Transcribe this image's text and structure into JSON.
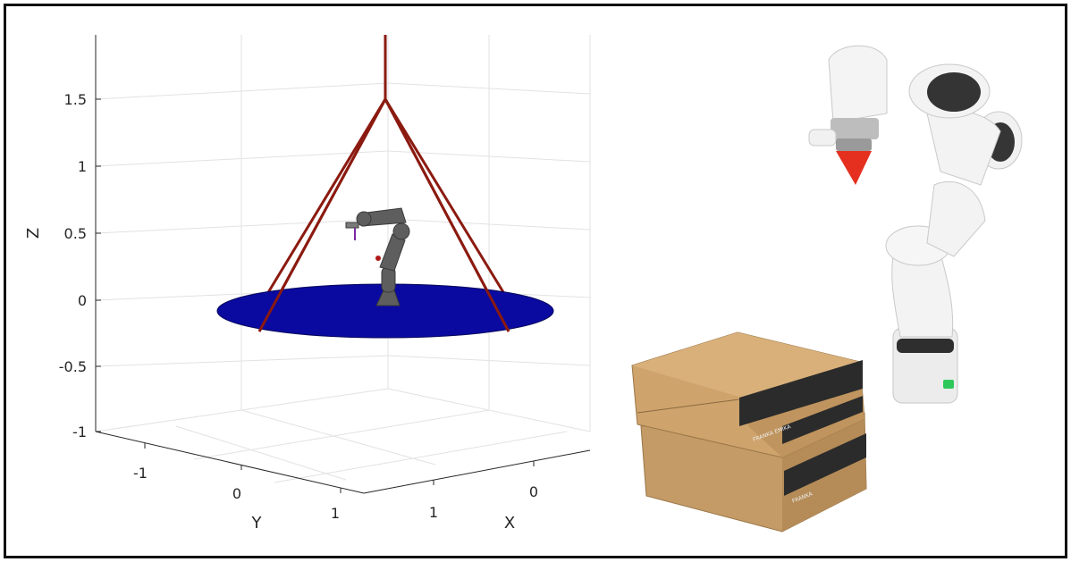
{
  "plot": {
    "z_ticks": [
      "1.5",
      "1",
      "0.5",
      "0",
      "-0.5",
      "-1"
    ],
    "y_ticks": [
      "-1",
      "0",
      "1"
    ],
    "x_ticks": [
      "1",
      "0"
    ],
    "z_label": "Z",
    "y_label": "Y",
    "x_label": "X",
    "colors": {
      "platform": "#0a0aa0",
      "cables": "#8b1a10",
      "robot": "#5a5a5a",
      "grid": "#e2e2e2",
      "axis": "#262626"
    }
  },
  "photo": {
    "robot_colors": {
      "body": "#f2f2f2",
      "joints": "#3a3a3a",
      "tool": "#e53020"
    },
    "box_colors": {
      "cardboard": "#c9a06a",
      "band": "#2b2b2b"
    },
    "box_label_1": "FRANKA EMIKA",
    "box_label_2": "FRANKA"
  }
}
